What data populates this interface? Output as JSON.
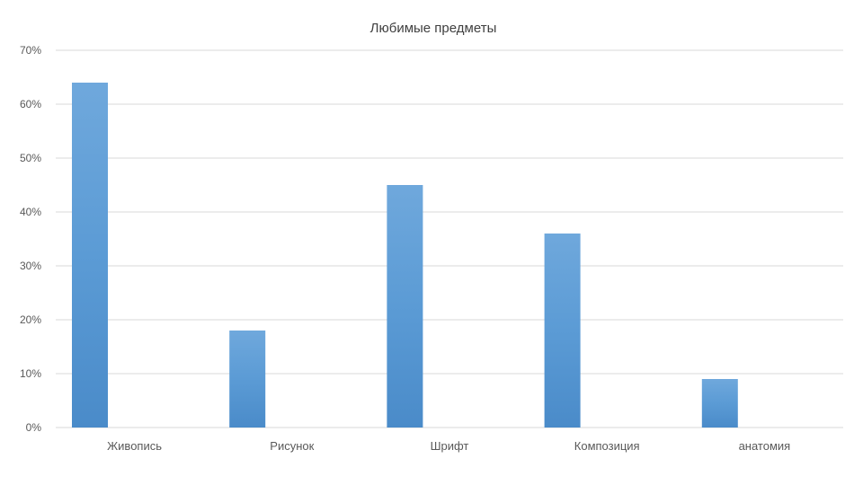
{
  "chart_data": {
    "type": "bar",
    "title": "Любимые предметы",
    "xlabel": "",
    "ylabel": "",
    "categories": [
      "Живопись",
      "Рисунок",
      "Шрифт",
      "Композиция",
      "анатомия"
    ],
    "values": [
      0.64,
      0.18,
      0.45,
      0.36,
      0.09
    ],
    "ylim": [
      0,
      0.7
    ],
    "yticks": [
      "0%",
      "10%",
      "20%",
      "30%",
      "40%",
      "50%",
      "60%",
      "70%"
    ],
    "grid": true,
    "legend": "none",
    "colors": {
      "bar_top": "#6fa8dc",
      "bar_mid": "#5b9bd5",
      "bar_bottom": "#4a8bc9"
    }
  }
}
